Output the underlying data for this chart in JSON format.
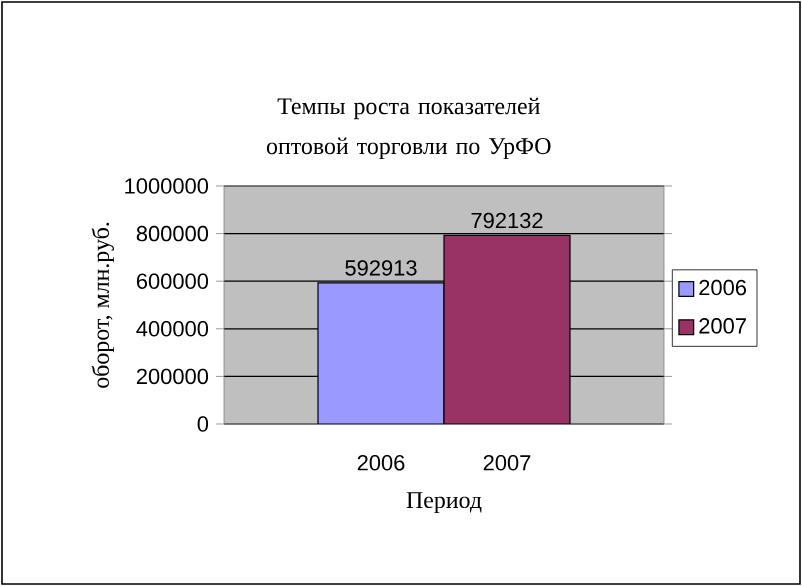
{
  "chart_data": {
    "type": "bar",
    "title": "Темпы роста показателей оптовой торговли по УрФО",
    "xlabel": "Период",
    "ylabel": "оборот, млн.руб.",
    "categories": [
      "2006",
      "2007"
    ],
    "series": [
      {
        "name": "2006",
        "color": "#9999ff",
        "values": [
          592913,
          null
        ]
      },
      {
        "name": "2007",
        "color": "#993366",
        "values": [
          null,
          792132
        ]
      }
    ],
    "ylim": [
      0,
      1000000
    ],
    "yticks": [
      0,
      200000,
      400000,
      600000,
      800000,
      1000000
    ],
    "grid": "y",
    "legend": "right",
    "data_labels": true
  }
}
